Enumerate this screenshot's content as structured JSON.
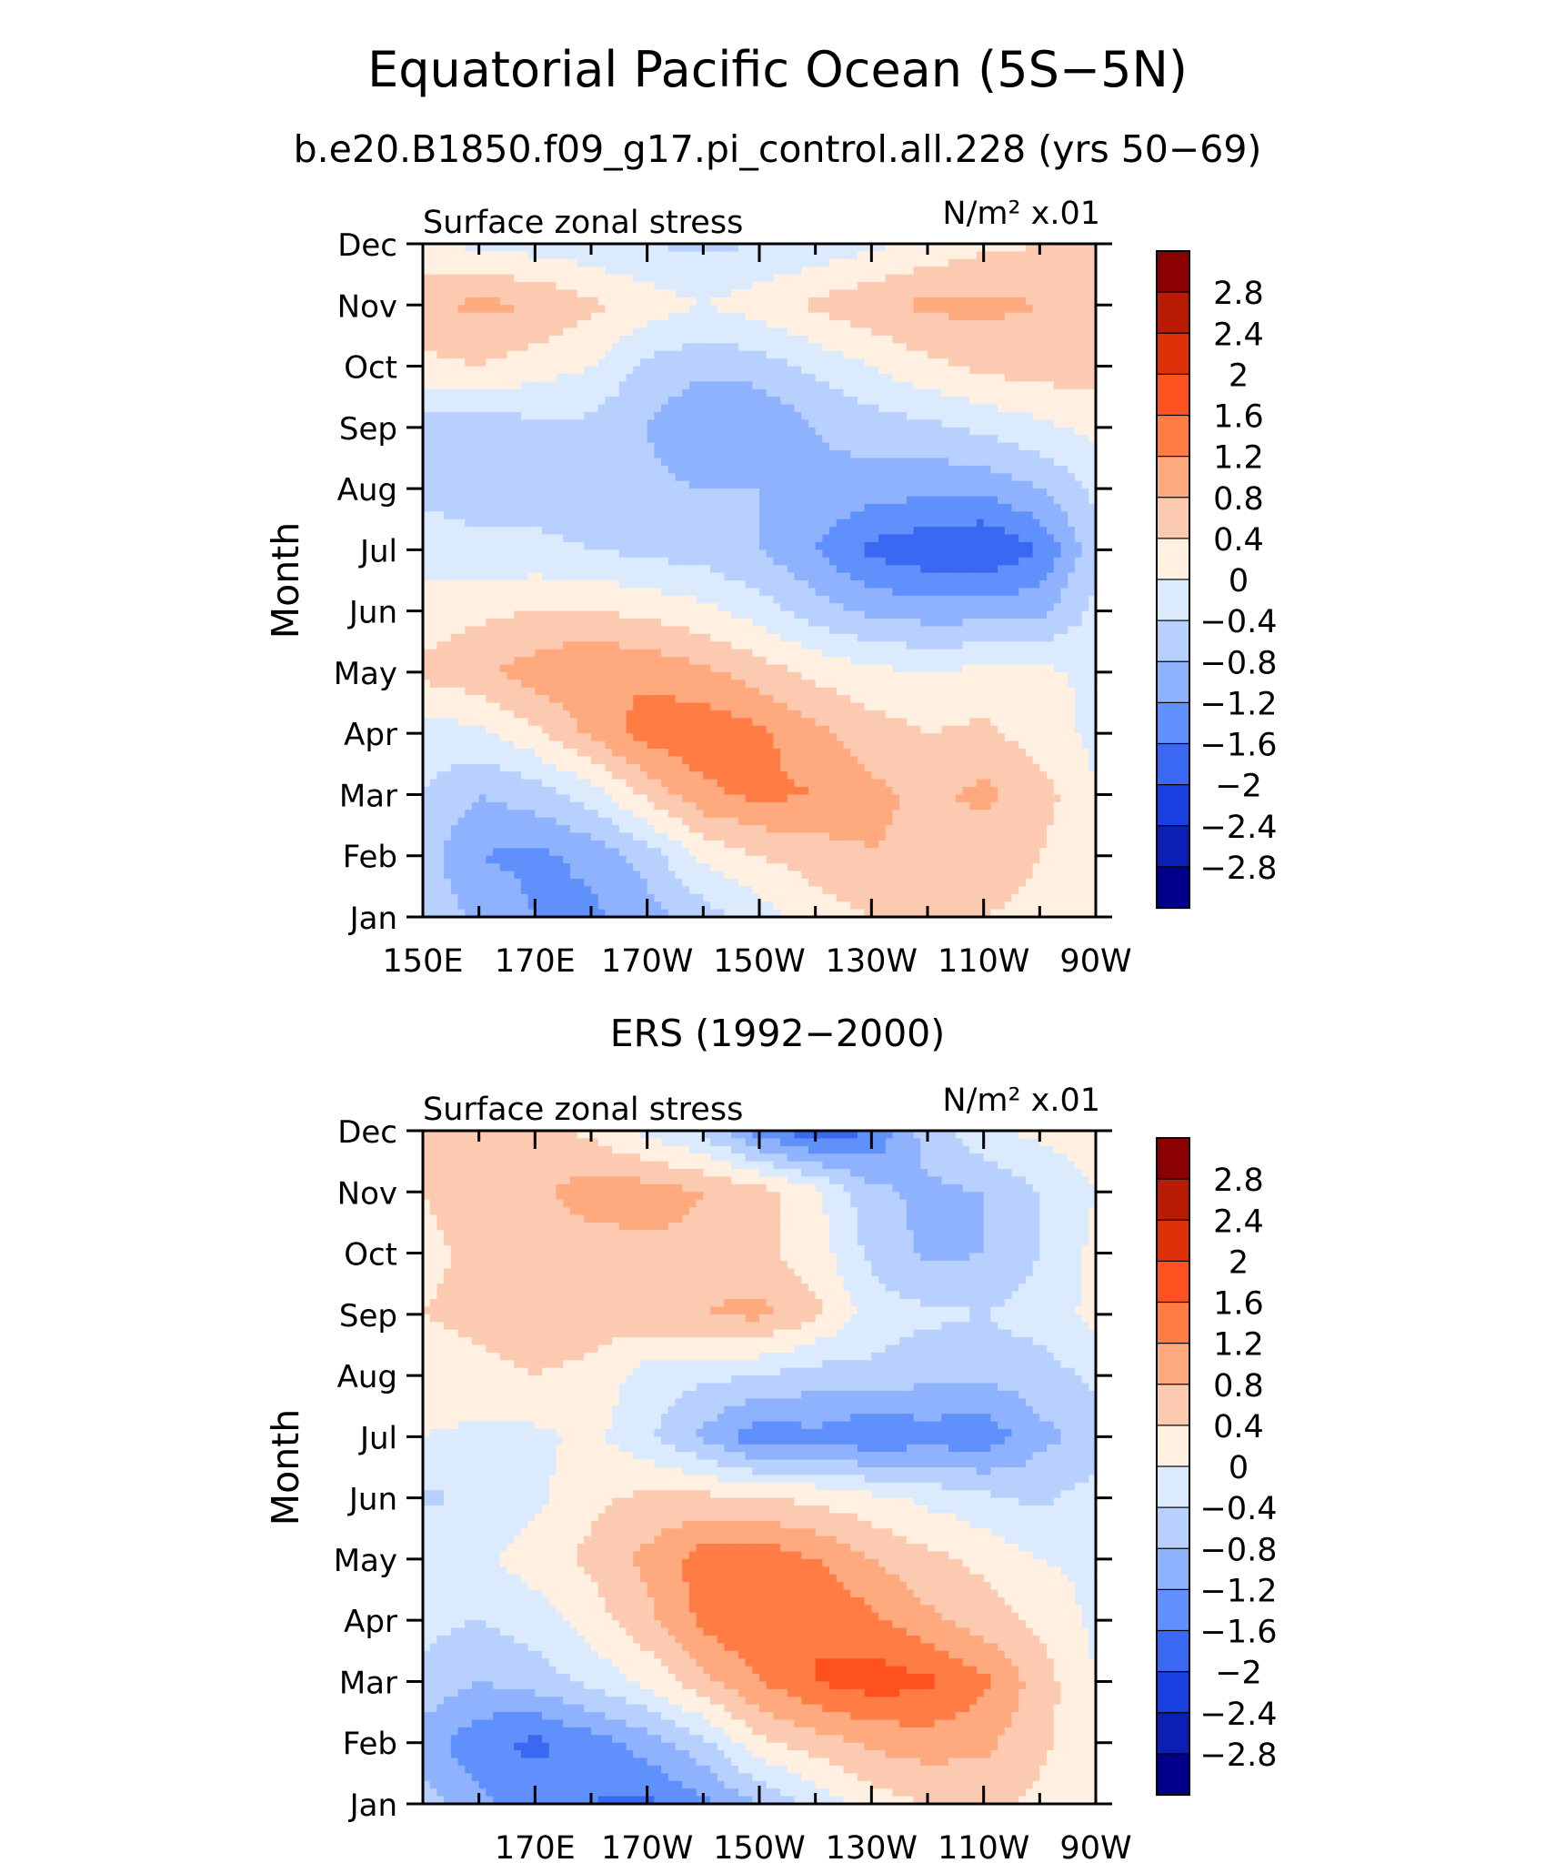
{
  "figure": {
    "title": "Equatorial Pacific Ocean (5S−5N)",
    "subtitle": "b.e20.B1850.f09_g17.pi_control.all.228 (yrs 50−69)"
  },
  "chart_data": [
    {
      "type": "heatmap",
      "panel_title": "",
      "left_label": "Surface zonal stress",
      "units_label": "N/m² x.01",
      "xlabel": "",
      "ylabel": "Month",
      "x_ticks": [
        "150E",
        "170E",
        "170W",
        "150W",
        "130W",
        "110W",
        "90W"
      ],
      "y_ticks": [
        "Jan",
        "Feb",
        "Mar",
        "Apr",
        "May",
        "Jun",
        "Jul",
        "Aug",
        "Sep",
        "Oct",
        "Nov",
        "Dec"
      ],
      "xlim": [
        150,
        270
      ],
      "ylim": [
        1,
        12
      ],
      "x_axis_units": "degrees longitude (east-positive)",
      "colorbar": {
        "levels": [
          "2.8",
          "2.4",
          "2",
          "1.6",
          "1.2",
          "0.8",
          "0.4",
          "0",
          "−0.4",
          "−0.8",
          "−1.2",
          "−1.6",
          "−2",
          "−2.4",
          "−2.8"
        ],
        "colors": [
          "#8b0000",
          "#b81c05",
          "#e0300a",
          "#ff5020",
          "#ff7d45",
          "#ffa97f",
          "#fccab0",
          "#fff0e2",
          "#dbebfd",
          "#b7d0fe",
          "#8fb2fe",
          "#6090fb",
          "#3a68f2",
          "#1a3fe0",
          "#0a20b5",
          "#00008b"
        ]
      },
      "x": [
        150,
        160,
        170,
        180,
        190,
        200,
        210,
        220,
        230,
        240,
        250,
        260,
        270
      ],
      "y": [
        1,
        2,
        3,
        4,
        5,
        6,
        7,
        8,
        9,
        10,
        11,
        12
      ],
      "z": [
        [
          -0.5,
          -0.9,
          -1.2,
          -1.3,
          -1.0,
          -0.6,
          -0.2,
          0.2,
          0.4,
          0.5,
          0.4,
          0.3,
          0.1
        ],
        [
          -0.6,
          -1.2,
          -1.3,
          -1.1,
          -0.6,
          0.1,
          0.4,
          0.6,
          0.8,
          0.7,
          0.6,
          0.4,
          0.0
        ],
        [
          -0.4,
          -0.8,
          -0.6,
          -0.2,
          0.5,
          1.1,
          1.3,
          1.2,
          0.9,
          0.7,
          0.9,
          0.6,
          0.0
        ],
        [
          -0.2,
          -0.1,
          0.3,
          0.9,
          1.4,
          1.5,
          1.3,
          0.9,
          0.6,
          0.4,
          0.5,
          0.2,
          -0.1
        ],
        [
          0.5,
          0.7,
          1.0,
          1.2,
          1.1,
          0.9,
          0.6,
          0.3,
          0.1,
          0.0,
          0.1,
          0.1,
          -0.1
        ],
        [
          0.2,
          0.3,
          0.4,
          0.4,
          0.3,
          0.1,
          -0.2,
          -0.6,
          -0.9,
          -1.0,
          -1.0,
          -0.9,
          -0.3
        ],
        [
          -0.2,
          -0.3,
          -0.3,
          -0.4,
          -0.5,
          -0.6,
          -0.8,
          -1.2,
          -1.7,
          -1.9,
          -2.0,
          -1.6,
          -0.5
        ],
        [
          -0.5,
          -0.6,
          -0.6,
          -0.6,
          -0.7,
          -0.8,
          -0.8,
          -0.9,
          -1.0,
          -1.1,
          -1.1,
          -0.8,
          -0.3
        ],
        [
          -0.6,
          -0.7,
          -0.5,
          -0.5,
          -0.8,
          -1.2,
          -1.2,
          -0.8,
          -0.6,
          -0.5,
          -0.3,
          -0.1,
          0.1
        ],
        [
          0.3,
          0.4,
          0.2,
          0.0,
          -0.5,
          -0.7,
          -0.6,
          -0.3,
          0.0,
          0.3,
          0.5,
          0.6,
          0.6
        ],
        [
          0.7,
          0.9,
          0.8,
          0.5,
          0.2,
          0.0,
          0.2,
          0.5,
          0.7,
          0.9,
          0.9,
          0.8,
          0.6
        ],
        [
          0.1,
          -0.1,
          -0.2,
          -0.3,
          -0.4,
          -0.5,
          -0.4,
          -0.3,
          -0.1,
          0.1,
          0.3,
          0.4,
          0.4
        ]
      ]
    },
    {
      "type": "heatmap",
      "panel_title": "ERS (1992−2000)",
      "left_label": "Surface zonal stress",
      "units_label": "N/m² x.01",
      "xlabel": "",
      "ylabel": "Month",
      "x_ticks": [
        "170E",
        "170W",
        "150W",
        "130W",
        "110W",
        "90W"
      ],
      "y_ticks": [
        "Jan",
        "Feb",
        "Mar",
        "Apr",
        "May",
        "Jun",
        "Jul",
        "Aug",
        "Sep",
        "Oct",
        "Nov",
        "Dec"
      ],
      "xlim": [
        150,
        270
      ],
      "ylim": [
        1,
        12
      ],
      "x_axis_units": "degrees longitude (east-positive)",
      "colorbar": {
        "levels": [
          "2.8",
          "2.4",
          "2",
          "1.6",
          "1.2",
          "0.8",
          "0.4",
          "0",
          "−0.4",
          "−0.8",
          "−1.2",
          "−1.6",
          "−2",
          "−2.4",
          "−2.8"
        ],
        "colors": [
          "#8b0000",
          "#b81c05",
          "#e0300a",
          "#ff5020",
          "#ff7d45",
          "#ffa97f",
          "#fccab0",
          "#fff0e2",
          "#dbebfd",
          "#b7d0fe",
          "#8fb2fe",
          "#6090fb",
          "#3a68f2",
          "#1a3fe0",
          "#0a20b5",
          "#00008b"
        ]
      },
      "x": [
        150,
        160,
        170,
        180,
        190,
        200,
        210,
        220,
        230,
        240,
        250,
        260,
        270
      ],
      "y": [
        1,
        2,
        3,
        4,
        5,
        6,
        7,
        8,
        9,
        10,
        11,
        12
      ],
      "z": [
        [
          -0.6,
          -1.1,
          -1.4,
          -1.6,
          -1.7,
          -1.3,
          -0.8,
          -0.3,
          0.2,
          0.4,
          0.5,
          0.3,
          0.2
        ],
        [
          -1.0,
          -1.5,
          -1.7,
          -1.4,
          -1.0,
          -0.5,
          0.3,
          0.6,
          0.9,
          1.0,
          0.9,
          0.5,
          0.1
        ],
        [
          -0.5,
          -0.8,
          -0.6,
          -0.3,
          0.1,
          0.7,
          1.2,
          1.6,
          1.8,
          1.7,
          1.3,
          0.6,
          0.0
        ],
        [
          -0.3,
          -0.4,
          -0.2,
          0.2,
          0.7,
          1.3,
          1.6,
          1.6,
          1.3,
          0.9,
          0.6,
          0.3,
          -0.1
        ],
        [
          0.0,
          -0.1,
          0.2,
          0.5,
          0.9,
          1.4,
          1.5,
          1.2,
          0.8,
          0.5,
          0.3,
          0.0,
          -0.1
        ],
        [
          -0.5,
          -0.3,
          -0.1,
          0.3,
          0.5,
          0.5,
          0.4,
          0.3,
          0.1,
          -0.1,
          -0.3,
          -0.5,
          -0.2
        ],
        [
          0.0,
          -0.1,
          -0.1,
          0.1,
          -0.3,
          -0.9,
          -1.5,
          -1.3,
          -1.6,
          -1.4,
          -1.5,
          -0.9,
          -0.7
        ],
        [
          0.2,
          0.3,
          0.4,
          0.3,
          -0.2,
          -0.3,
          -0.4,
          -0.6,
          -0.5,
          -0.7,
          -0.7,
          -0.6,
          -0.3
        ],
        [
          0.4,
          0.5,
          0.6,
          0.6,
          0.7,
          0.8,
          0.9,
          0.5,
          -0.2,
          -0.3,
          -0.4,
          -0.2,
          0.1
        ],
        [
          0.3,
          0.5,
          0.6,
          0.6,
          0.7,
          0.7,
          0.5,
          0.2,
          -0.5,
          -0.9,
          -0.8,
          -0.4,
          0.1
        ],
        [
          0.4,
          0.6,
          0.7,
          1.0,
          1.0,
          0.8,
          0.6,
          0.1,
          -0.7,
          -0.9,
          -0.8,
          -0.4,
          0.0
        ],
        [
          0.5,
          0.8,
          0.6,
          0.3,
          -0.1,
          -0.5,
          -1.4,
          -1.9,
          -1.6,
          -0.6,
          -0.1,
          0.1,
          0.2
        ]
      ]
    }
  ]
}
